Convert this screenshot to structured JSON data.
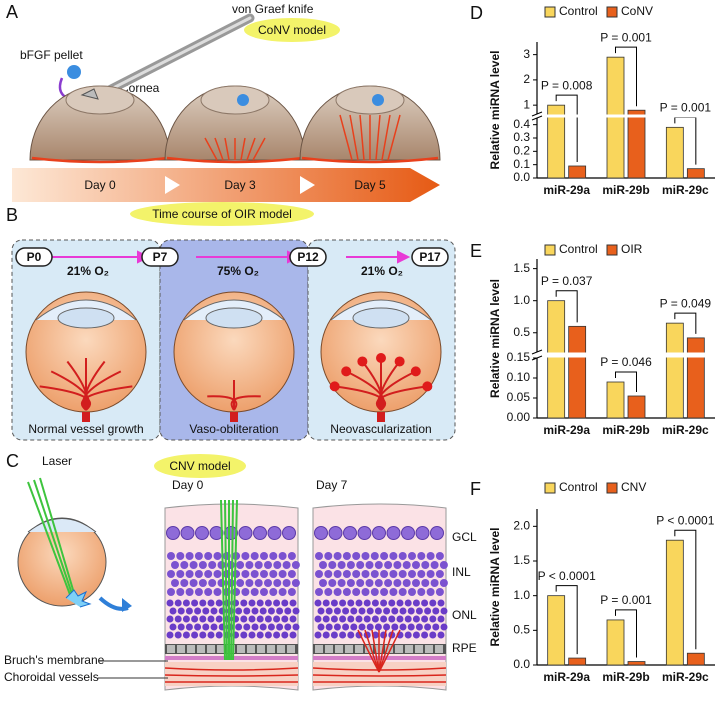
{
  "chart_data": [
    {
      "type": "bar",
      "panel_label": "D",
      "ylabel": "Relative miRNA level",
      "categories": [
        "miR-29a",
        "miR-29b",
        "miR-29c"
      ],
      "series": [
        {
          "name": "Control",
          "color": "#f9d65c",
          "values": [
            1.0,
            2.9,
            0.38
          ]
        },
        {
          "name": "CoNV",
          "color": "#e8601c",
          "values": [
            0.09,
            0.8,
            0.07
          ]
        }
      ],
      "segments": [
        {
          "ylim": [
            0,
            0.45
          ],
          "yticks": [
            {
              "value": 0,
              "label": "0.0"
            },
            0.1,
            0.2,
            0.3,
            0.4
          ]
        },
        {
          "ylim": [
            0.65,
            3.5
          ],
          "yticks": [
            1,
            2,
            3
          ]
        }
      ],
      "annotations": [
        "P = 0.008",
        "P = 0.001",
        "P = 0.001"
      ]
    },
    {
      "type": "bar",
      "panel_label": "E",
      "ylabel": "Relative miRNA level",
      "categories": [
        "miR-29a",
        "miR-29b",
        "miR-29c"
      ],
      "series": [
        {
          "name": "Control",
          "color": "#f9d65c",
          "values": [
            1.0,
            0.09,
            0.65
          ]
        },
        {
          "name": "OIR",
          "color": "#e8601c",
          "values": [
            0.6,
            0.055,
            0.42
          ]
        }
      ],
      "segments": [
        {
          "ylim": [
            0,
            0.15
          ],
          "yticks": [
            {
              "value": 0,
              "label": "0.00"
            },
            {
              "value": 0.05,
              "label": "0.05"
            },
            {
              "value": 0.1,
              "label": "0.10"
            },
            {
              "value": 0.15,
              "label": "0.15"
            }
          ]
        },
        {
          "ylim": [
            0.2,
            1.65
          ],
          "yticks": [
            0.5,
            {
              "value": 1,
              "label": "1.0"
            },
            1.5
          ]
        }
      ],
      "annotations": [
        "P = 0.037",
        "P = 0.046",
        "P = 0.049"
      ]
    },
    {
      "type": "bar",
      "panel_label": "F",
      "ylabel": "Relative miRNA level",
      "categories": [
        "miR-29a",
        "miR-29b",
        "miR-29c"
      ],
      "series": [
        {
          "name": "Control",
          "color": "#f9d65c",
          "values": [
            1.0,
            0.65,
            1.8
          ]
        },
        {
          "name": "CNV",
          "color": "#e8601c",
          "values": [
            0.1,
            0.05,
            0.17
          ]
        }
      ],
      "segments": [
        {
          "ylim": [
            0,
            2.25
          ],
          "yticks": [
            {
              "value": 0,
              "label": "0.0"
            },
            0.5,
            {
              "value": 1,
              "label": "1.0"
            },
            1.5,
            {
              "value": 2,
              "label": "2.0"
            }
          ]
        }
      ],
      "annotations": [
        "P < 0.0001",
        "P = 0.001",
        "P < 0.0001"
      ]
    }
  ],
  "panels": {
    "A": {
      "label": "A",
      "title": "CoNV model",
      "knife": "von Graef knife",
      "pellet": "bFGF pellet",
      "cornea": "Cornea",
      "days": [
        "Day 0",
        "Day 3",
        "Day 5"
      ]
    },
    "B": {
      "label": "B",
      "title": "Time course of OIR model",
      "ages": [
        "P0",
        "P7",
        "P12",
        "P17"
      ],
      "oxygen": [
        "21% O₂",
        "75% O₂",
        "21% O₂"
      ],
      "stages": [
        "Normal vessel growth",
        "Vaso-obliteration",
        "Neovascularization"
      ]
    },
    "C": {
      "label": "C",
      "title": "CNV model",
      "laser": "Laser",
      "days": [
        "Day 0",
        "Day 7"
      ],
      "layers": [
        "GCL",
        "INL",
        "ONL",
        "RPE"
      ],
      "bruch": "Bruch's membrane",
      "choroid": "Choroidal vessels"
    }
  }
}
